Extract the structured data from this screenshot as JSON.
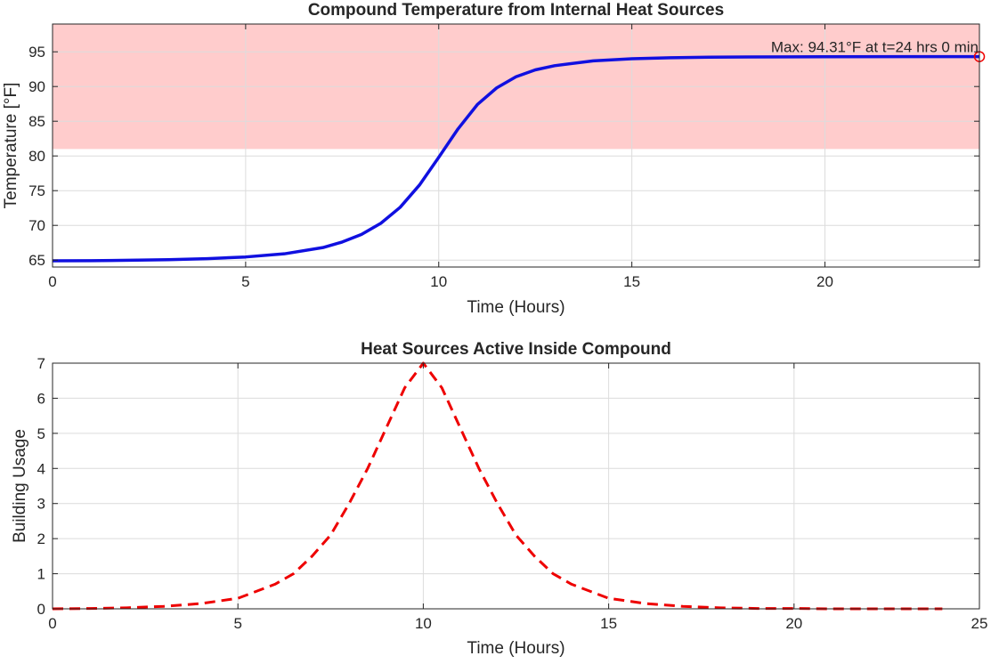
{
  "colors": {
    "temperature_line": "#1010e0",
    "usage_line": "#ee0000",
    "danger_zone": "#ffcccc",
    "grid": "#dcdcdc",
    "axis": "#262626",
    "max_marker": "#ee0000"
  },
  "chart_data": [
    {
      "type": "line",
      "title": "Compound Temperature from Internal Heat Sources",
      "xlabel": "Time (Hours)",
      "ylabel": "Temperature [°F]",
      "xlim": [
        0,
        24
      ],
      "ylim": [
        64,
        99
      ],
      "grid": true,
      "xticks": [
        0,
        5,
        10,
        15,
        20
      ],
      "yticks": [
        65,
        70,
        75,
        80,
        85,
        90,
        95
      ],
      "shaded_band": {
        "y_from": 81,
        "y_to": 99,
        "color": "#ffcccc"
      },
      "series": [
        {
          "style": "solid",
          "color": "#1010e0",
          "x": [
            0,
            1,
            2,
            3,
            4,
            5,
            6,
            7,
            7.5,
            8,
            8.5,
            9,
            9.5,
            10,
            10.5,
            11,
            11.5,
            12,
            12.5,
            13,
            14,
            15,
            16,
            17,
            18,
            20,
            22,
            24
          ],
          "y": [
            64.9,
            64.92,
            64.97,
            65.05,
            65.2,
            65.45,
            65.9,
            66.8,
            67.6,
            68.7,
            70.3,
            72.6,
            75.8,
            79.8,
            83.9,
            87.4,
            89.8,
            91.4,
            92.4,
            93.0,
            93.7,
            94.0,
            94.15,
            94.22,
            94.26,
            94.29,
            94.3,
            94.31
          ]
        }
      ],
      "annotation": {
        "text": "Max: 94.31°F at t=24 hrs 0 min",
        "x": 24,
        "y": 94.31,
        "marker": "circle"
      }
    },
    {
      "type": "line",
      "title": "Heat Sources Active Inside Compound",
      "xlabel": "Time (Hours)",
      "ylabel": "Building Usage",
      "xlim": [
        0,
        25
      ],
      "ylim": [
        0,
        7
      ],
      "grid": true,
      "xticks": [
        0,
        5,
        10,
        15,
        20,
        25
      ],
      "yticks": [
        0,
        1,
        2,
        3,
        4,
        5,
        6,
        7
      ],
      "series": [
        {
          "style": "dashed",
          "color": "#ee0000",
          "x": [
            0,
            1,
            2,
            3,
            4,
            5,
            6,
            6.5,
            7,
            7.5,
            8,
            8.5,
            9,
            9.5,
            10,
            10.5,
            11,
            11.5,
            12,
            12.5,
            13,
            13.5,
            14,
            15,
            16,
            17,
            18,
            19,
            20,
            21,
            22,
            23,
            24
          ],
          "y": [
            0.0,
            0.01,
            0.03,
            0.07,
            0.15,
            0.3,
            0.7,
            1.0,
            1.5,
            2.1,
            3.0,
            4.0,
            5.15,
            6.3,
            7.0,
            6.3,
            5.15,
            4.0,
            3.0,
            2.1,
            1.5,
            1.0,
            0.7,
            0.3,
            0.15,
            0.07,
            0.03,
            0.01,
            0.01,
            0.0,
            0.0,
            0.0,
            0.0
          ]
        }
      ]
    }
  ]
}
